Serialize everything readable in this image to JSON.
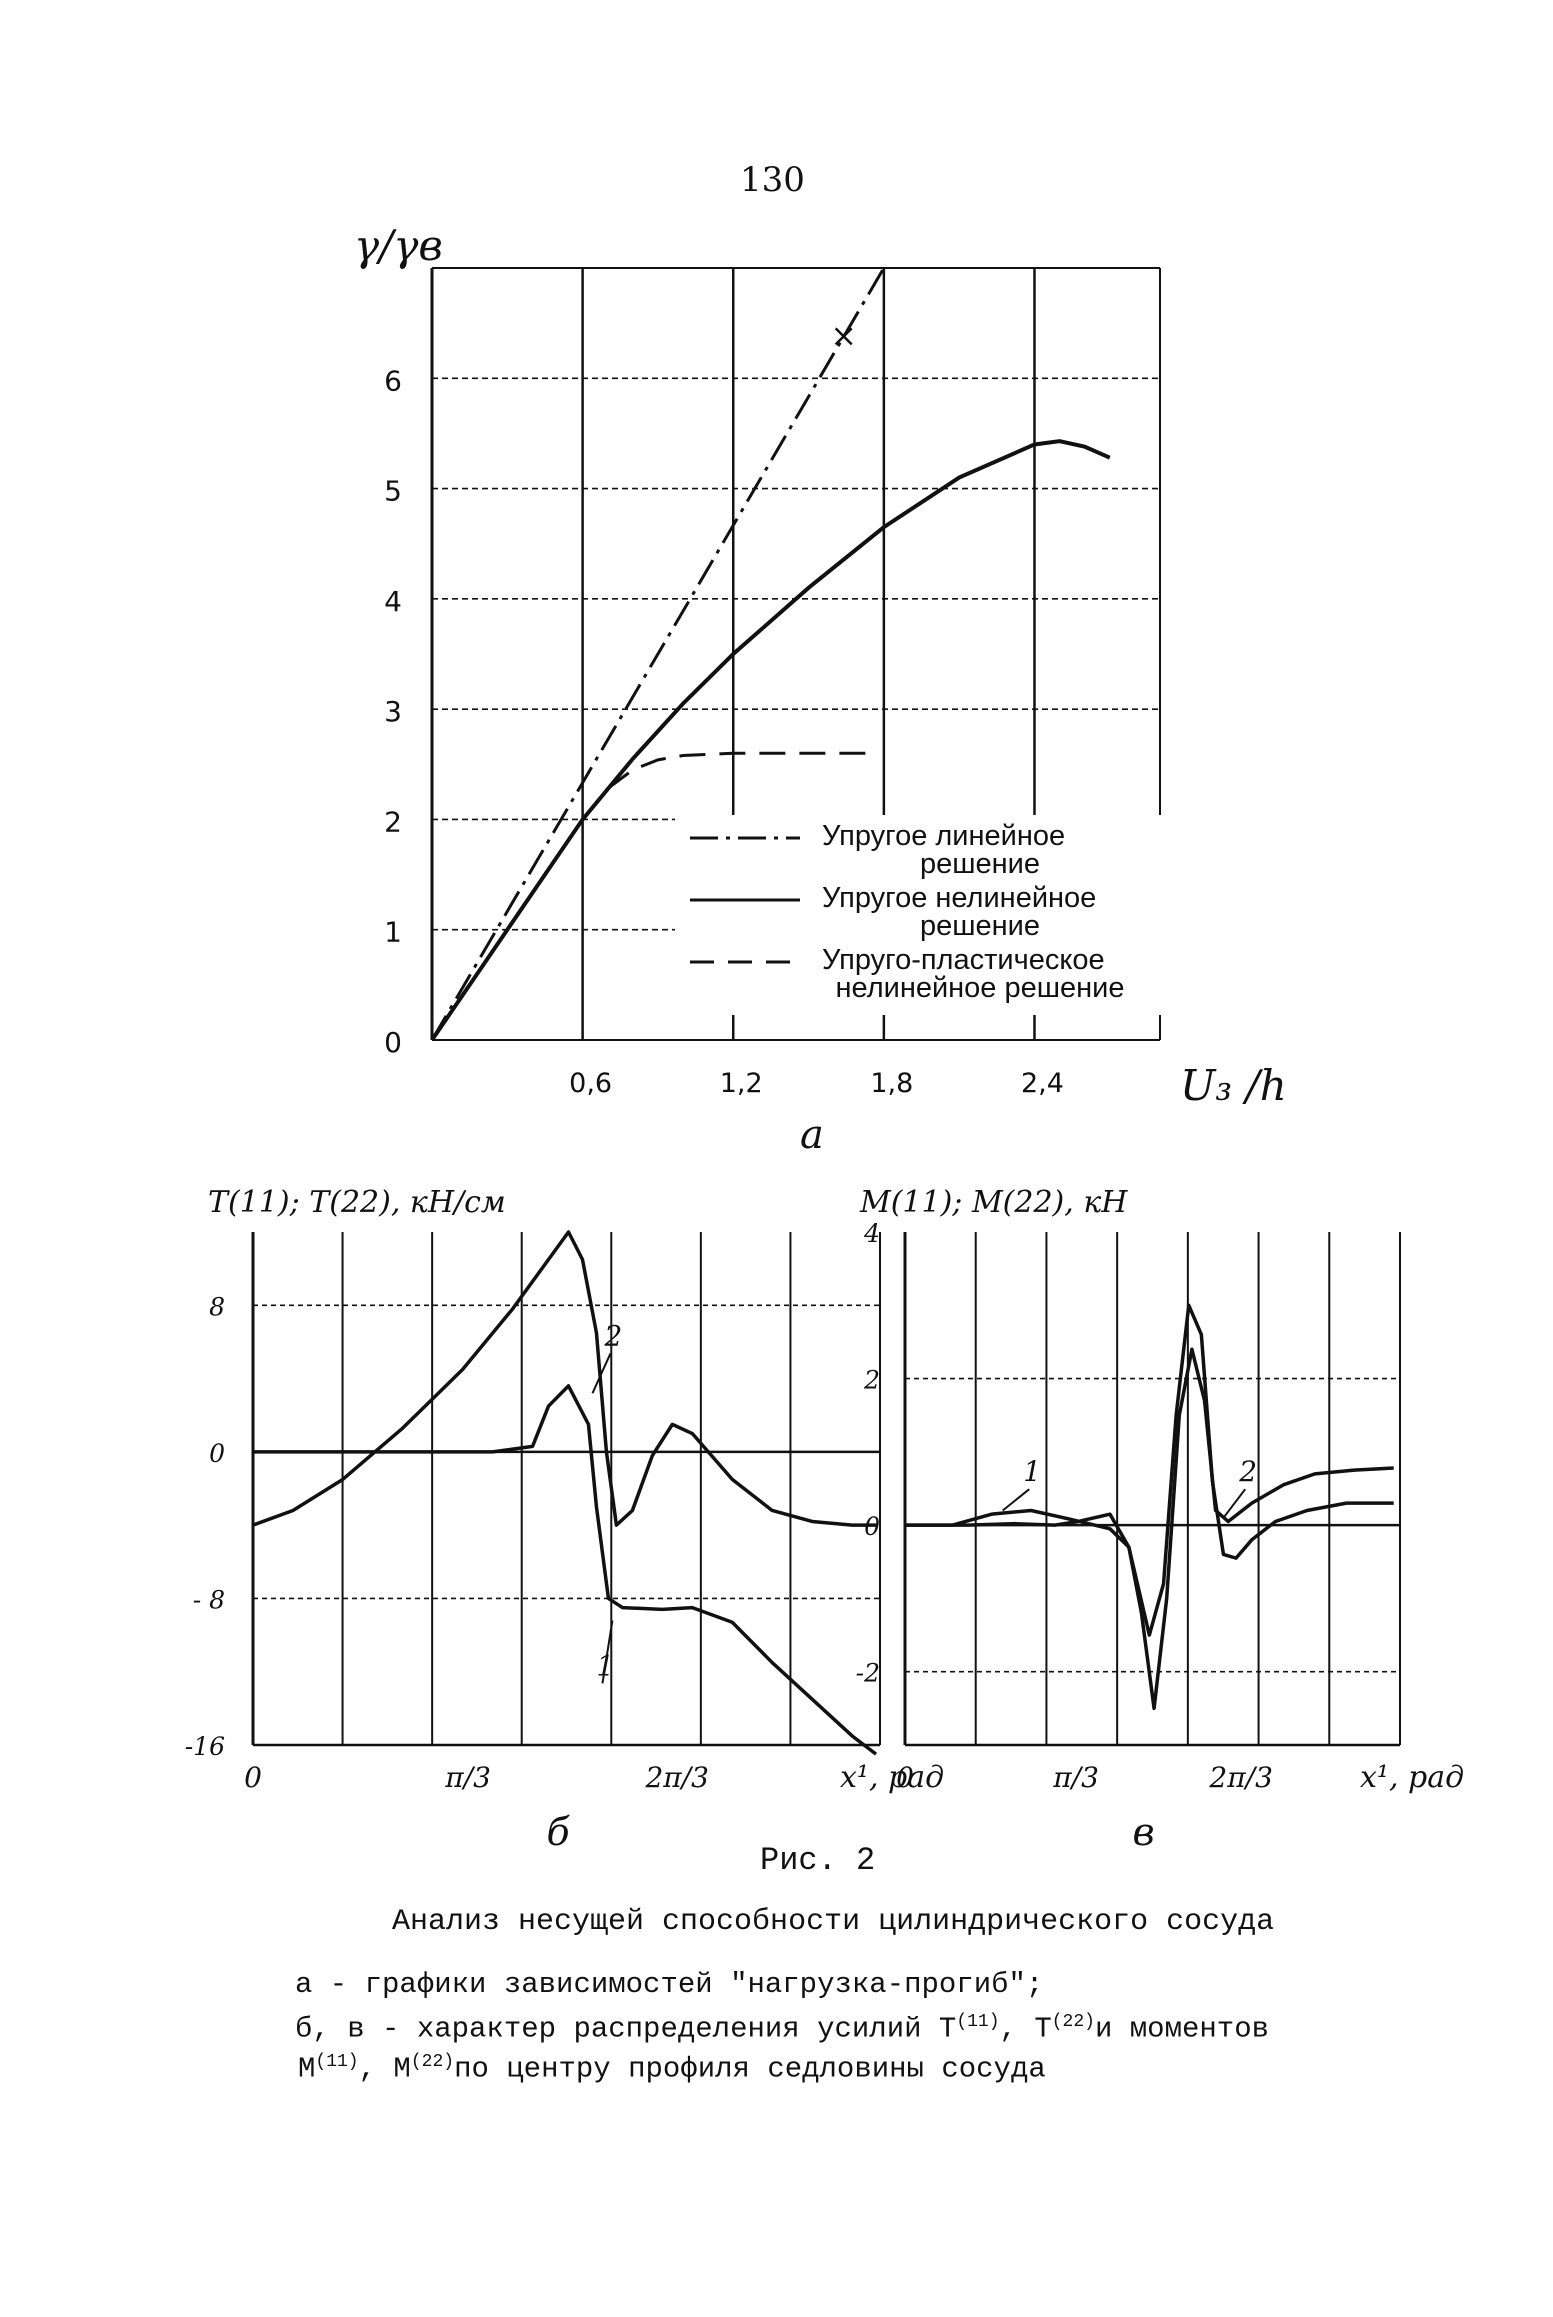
{
  "page_number": "130",
  "figure_label": "Рис. 2",
  "caption": {
    "title": "Анализ несущей способности цилиндрического сосуда",
    "line_a": "а - графики зависимостей \"нагрузка-прогиб\";",
    "line_b_pre": "б, в - характер распределения усилий ",
    "line_b_t": "T",
    "line_b_t1_sup": "(11)",
    "line_b_sep": ", T",
    "line_b_t2_sup": "(22)",
    "line_b_post": "и моментов",
    "line_c_m": "M",
    "line_c_m1_sup": "(11)",
    "line_c_sep": ", M",
    "line_c_m2_sup": "(22)",
    "line_c_post": "по центру профиля седловины сосуда"
  },
  "chart_data": [
    {
      "id": "a",
      "type": "line",
      "panel_label": "а",
      "ylabel": "γ/γв",
      "xlabel": "U₃ /h",
      "y_ticks": [
        "0",
        "1",
        "2",
        "3",
        "4",
        "5",
        "6"
      ],
      "x_ticks": [
        "0,6",
        "1,2",
        "1,8",
        "2,4"
      ],
      "xlim": [
        0,
        2.9
      ],
      "ylim": [
        0,
        7
      ],
      "grid": true,
      "legend_position": "bottom-right inside",
      "series": [
        {
          "name": "Упругое линейное решение",
          "style": "dash-dot",
          "x": [
            0,
            1.8
          ],
          "y": [
            0,
            7.0
          ]
        },
        {
          "name": "Упругое нелинейное решение",
          "style": "solid",
          "x": [
            0,
            0.3,
            0.6,
            0.8,
            1.0,
            1.2,
            1.5,
            1.8,
            2.1,
            2.4,
            2.5,
            2.6,
            2.7
          ],
          "y": [
            0,
            1.0,
            2.0,
            2.55,
            3.05,
            3.5,
            4.1,
            4.65,
            5.1,
            5.4,
            5.43,
            5.38,
            5.28
          ]
        },
        {
          "name": "Упруго-пластическое нелинейное решение",
          "style": "dashed",
          "x": [
            0.6,
            0.7,
            0.8,
            0.9,
            1.0,
            1.2,
            1.4,
            1.6,
            1.75
          ],
          "y": [
            2.0,
            2.28,
            2.45,
            2.54,
            2.58,
            2.6,
            2.6,
            2.6,
            2.6
          ]
        }
      ],
      "legend": [
        "Упругое линейное",
        "решение",
        "Упругое нелинейное",
        "решение",
        "Упруго-пластическое",
        "нелинейное решение"
      ]
    },
    {
      "id": "b",
      "type": "line",
      "panel_label": "б",
      "ylabel": "T(11); T(22), кН/см",
      "xlabel": "x¹, рад",
      "y_ticks": [
        "8",
        "0",
        "- 8",
        "-16"
      ],
      "x_ticks": [
        "0",
        "π/3",
        "2π/3"
      ],
      "xlim": [
        0,
        3.14
      ],
      "ylim": [
        -16,
        12
      ],
      "grid": true,
      "series": [
        {
          "name": "1",
          "x": [
            0,
            1.2,
            1.4,
            1.48,
            1.58,
            1.68,
            1.72,
            1.78,
            1.85,
            2.05,
            2.2,
            2.4,
            2.6,
            2.8,
            3.0,
            3.12
          ],
          "y": [
            0,
            0,
            0.3,
            2.5,
            3.6,
            1.5,
            -3.0,
            -8.0,
            -8.5,
            -8.6,
            -8.5,
            -9.3,
            -11.5,
            -13.5,
            -15.5,
            -16.5
          ]
        },
        {
          "name": "2",
          "x": [
            0,
            0.2,
            0.45,
            0.75,
            1.05,
            1.3,
            1.5,
            1.58,
            1.65,
            1.72,
            1.77,
            1.82,
            1.9,
            2.0,
            2.1,
            2.2,
            2.4,
            2.6,
            2.8,
            3.0,
            3.12
          ],
          "y": [
            -4.0,
            -3.2,
            -1.5,
            1.3,
            4.5,
            7.8,
            10.8,
            12.0,
            10.5,
            6.5,
            0.0,
            -4.0,
            -3.2,
            -0.2,
            1.5,
            1.0,
            -1.5,
            -3.2,
            -3.8,
            -4.0,
            -4.0
          ]
        }
      ],
      "curve_labels": [
        "1",
        "2"
      ]
    },
    {
      "id": "c",
      "type": "line",
      "panel_label": "в",
      "ylabel": "M(11); M(22), кН",
      "xlabel": "x¹, рад",
      "y_ticks": [
        "4",
        "2",
        "0",
        "-2"
      ],
      "x_ticks": [
        "0",
        "π/3",
        "2π/3"
      ],
      "xlim": [
        0,
        3.14
      ],
      "ylim": [
        -3,
        4
      ],
      "grid": true,
      "series": [
        {
          "name": "1",
          "x": [
            0,
            0.3,
            0.55,
            0.8,
            1.05,
            1.3,
            1.42,
            1.55,
            1.64,
            1.72,
            1.8,
            1.88,
            1.95,
            2.02,
            2.1,
            2.2,
            2.35,
            2.55,
            2.8,
            3.1
          ],
          "y": [
            0,
            0,
            0.15,
            0.2,
            0.08,
            -0.05,
            -0.3,
            -1.5,
            -0.8,
            1.5,
            3.0,
            2.6,
            0.6,
            -0.4,
            -0.45,
            -0.2,
            0.05,
            0.2,
            0.3,
            0.3
          ]
        },
        {
          "name": "2",
          "x": [
            0,
            0.4,
            0.7,
            0.95,
            1.1,
            1.3,
            1.42,
            1.5,
            1.58,
            1.66,
            1.74,
            1.82,
            1.9,
            1.97,
            2.05,
            2.2,
            2.4,
            2.6,
            2.85,
            3.1
          ],
          "y": [
            0,
            0,
            0.02,
            0,
            0.05,
            0.15,
            -0.3,
            -1.2,
            -2.5,
            -1.0,
            1.5,
            2.4,
            1.7,
            0.2,
            0.05,
            0.3,
            0.55,
            0.7,
            0.75,
            0.78
          ]
        }
      ],
      "curve_labels": [
        "1",
        "2"
      ]
    }
  ]
}
